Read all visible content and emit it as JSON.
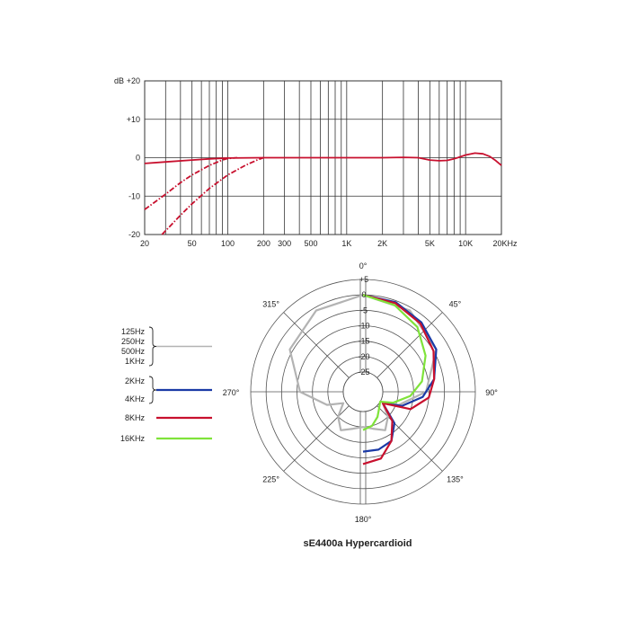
{
  "chart_data": [
    {
      "type": "line",
      "title": "",
      "xlabel": "",
      "ylabel": "dB",
      "x_scale": "log",
      "xlim": [
        20,
        20000
      ],
      "ylim": [
        -20,
        20
      ],
      "y_ticks": [
        {
          "value": 20,
          "label": "+20"
        },
        {
          "value": 10,
          "label": "+10"
        },
        {
          "value": 0,
          "label": "0"
        },
        {
          "value": -10,
          "label": "-10"
        },
        {
          "value": -20,
          "label": "-20"
        }
      ],
      "x_ticks": [
        {
          "value": 20,
          "label": "20"
        },
        {
          "value": 50,
          "label": "50"
        },
        {
          "value": 100,
          "label": "100"
        },
        {
          "value": 200,
          "label": "200"
        },
        {
          "value": 300,
          "label": "300"
        },
        {
          "value": 500,
          "label": "500"
        },
        {
          "value": 1000,
          "label": "1K"
        },
        {
          "value": 2000,
          "label": "2K"
        },
        {
          "value": 5000,
          "label": "5K"
        },
        {
          "value": 10000,
          "label": "10K"
        },
        {
          "value": 20000,
          "label": "20KHz"
        }
      ],
      "grid": true,
      "series": [
        {
          "style": "solid",
          "color": "#c8102e",
          "points": [
            [
              20,
              -1.5
            ],
            [
              30,
              -1.1
            ],
            [
              50,
              -0.6
            ],
            [
              70,
              -0.3
            ],
            [
              100,
              -0.1
            ],
            [
              200,
              0
            ],
            [
              500,
              0
            ],
            [
              1000,
              0
            ],
            [
              2000,
              0
            ],
            [
              3000,
              0.1
            ],
            [
              4000,
              0
            ],
            [
              5000,
              -0.6
            ],
            [
              6000,
              -0.8
            ],
            [
              7000,
              -0.7
            ],
            [
              8000,
              -0.3
            ],
            [
              10000,
              0.7
            ],
            [
              12000,
              1.2
            ],
            [
              14000,
              1
            ],
            [
              16000,
              0.3
            ],
            [
              18000,
              -0.8
            ],
            [
              20000,
              -2
            ]
          ]
        },
        {
          "style": "dash-dot",
          "color": "#c8102e",
          "points": [
            [
              20,
              -13.5
            ],
            [
              30,
              -9.5
            ],
            [
              40,
              -6.5
            ],
            [
              50,
              -4.5
            ],
            [
              70,
              -2
            ],
            [
              90,
              -0.6
            ],
            [
              100,
              -0.2
            ],
            [
              120,
              0
            ]
          ]
        },
        {
          "style": "dash-dot",
          "color": "#c8102e",
          "points": [
            [
              28,
              -20
            ],
            [
              40,
              -15
            ],
            [
              50,
              -12
            ],
            [
              70,
              -8
            ],
            [
              100,
              -4.5
            ],
            [
              140,
              -2
            ],
            [
              180,
              -0.5
            ],
            [
              200,
              0
            ]
          ]
        }
      ]
    },
    {
      "type": "polar",
      "title": "sE4400a  Hypercardioid",
      "r_ticks": [
        {
          "value": 5,
          "label": "+5"
        },
        {
          "value": 0,
          "label": "0"
        },
        {
          "value": -5,
          "label": "-5"
        },
        {
          "value": -10,
          "label": "-10"
        },
        {
          "value": -15,
          "label": "-15"
        },
        {
          "value": -20,
          "label": "-20"
        },
        {
          "value": -25,
          "label": "-25"
        }
      ],
      "angle_labels": [
        {
          "angle": 0,
          "label": "0°"
        },
        {
          "angle": 45,
          "label": "45°"
        },
        {
          "angle": 90,
          "label": "90°"
        },
        {
          "angle": 135,
          "label": "135°"
        },
        {
          "angle": 180,
          "label": "180°"
        },
        {
          "angle": 225,
          "label": "225°"
        },
        {
          "angle": 270,
          "label": "270°"
        },
        {
          "angle": 315,
          "label": "315°"
        }
      ],
      "series": [
        {
          "legend_lines": [
            "125Hz",
            "250Hz",
            "500Hz",
            "1KHz"
          ],
          "color": "#b3b3b3",
          "sides": "full",
          "points": [
            [
              0,
              0
            ],
            [
              30,
              -1
            ],
            [
              60,
              -4
            ],
            [
              90,
              -11
            ],
            [
              110,
              -19
            ],
            [
              120,
              -24
            ],
            [
              135,
              -20
            ],
            [
              150,
              -17
            ],
            [
              165,
              -19
            ],
            [
              180,
              -20
            ],
            [
              195,
              -19
            ],
            [
              210,
              -17
            ],
            [
              225,
              -20
            ],
            [
              240,
              -24
            ],
            [
              250,
              -19
            ],
            [
              270,
              -11
            ],
            [
              300,
              -4
            ],
            [
              330,
              -1
            ],
            [
              360,
              0
            ]
          ]
        },
        {
          "legend_lines": [
            "2KHz",
            "4KHz"
          ],
          "color": "#1a3aa6",
          "sides": "right",
          "points": [
            [
              0,
              0
            ],
            [
              20,
              -0.5
            ],
            [
              40,
              -2
            ],
            [
              60,
              -4
            ],
            [
              80,
              -8
            ],
            [
              95,
              -12
            ],
            [
              110,
              -18
            ],
            [
              120,
              -24
            ],
            [
              135,
              -17
            ],
            [
              150,
              -13
            ],
            [
              165,
              -12
            ],
            [
              180,
              -12
            ]
          ]
        },
        {
          "legend_lines": [
            "8KHz"
          ],
          "color": "#c8102e",
          "sides": "right",
          "points": [
            [
              0,
              0
            ],
            [
              20,
              -0.8
            ],
            [
              40,
              -2.5
            ],
            [
              60,
              -5
            ],
            [
              80,
              -8
            ],
            [
              95,
              -10
            ],
            [
              110,
              -15
            ],
            [
              120,
              -24
            ],
            [
              135,
              -18
            ],
            [
              150,
              -13
            ],
            [
              165,
              -9
            ],
            [
              180,
              -8
            ]
          ]
        },
        {
          "legend_lines": [
            "16KHz"
          ],
          "color": "#7fe33a",
          "sides": "right",
          "points": [
            [
              0,
              0
            ],
            [
              20,
              -1.5
            ],
            [
              40,
              -4
            ],
            [
              60,
              -8
            ],
            [
              80,
              -12
            ],
            [
              95,
              -16
            ],
            [
              110,
              -21
            ],
            [
              120,
              -25
            ],
            [
              135,
              -24
            ],
            [
              150,
              -22
            ],
            [
              165,
              -20
            ],
            [
              180,
              -19
            ]
          ]
        }
      ]
    }
  ]
}
